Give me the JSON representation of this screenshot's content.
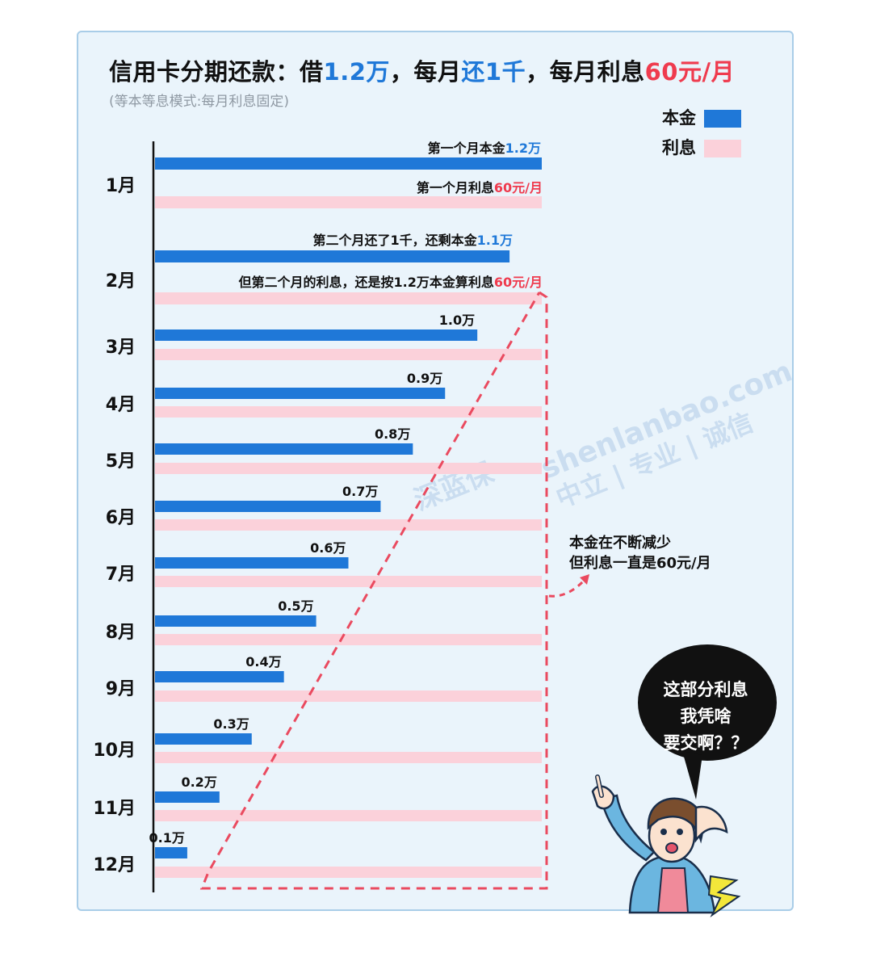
{
  "title": {
    "part1": "信用卡分期还款：借",
    "amount": "1.2万",
    "part2": "，每月",
    "repay_a": "还",
    "repay_b": "1千",
    "part3": "，每月利息",
    "interest": "60元/月"
  },
  "subtitle": "(等本等息模式:每月利息固定)",
  "legend": [
    {
      "label": "本金",
      "color": "#1f78d8"
    },
    {
      "label": "利息",
      "color": "#fbd1da"
    }
  ],
  "annotations": {
    "m1_principal_prefix": "第一个月本金",
    "m1_principal_value": "1.2万",
    "m1_interest_prefix": "第一个月利息",
    "m1_interest_value": "60元/月",
    "m2_principal_prefix": "第二个月还了1千，还剩本金",
    "m2_principal_value": "1.1万",
    "m2_interest_prefix": "但第二个月的利息，还是按1.2万本金算利息",
    "m2_interest_value": "60元/月"
  },
  "note": {
    "line1": "本金在不断减少",
    "line2": "但利息一直是60元/月"
  },
  "bubble": {
    "line1": "这部分利息",
    "line2": "我凭啥",
    "line3": "要交啊？？"
  },
  "watermark": {
    "site": "shenlanbao.com",
    "slogan": "中立 | 专业 | 诚信",
    "brand": "深蓝保"
  },
  "chart_data": {
    "type": "bar",
    "orientation": "horizontal",
    "categories": [
      "1月",
      "2月",
      "3月",
      "4月",
      "5月",
      "6月",
      "7月",
      "8月",
      "9月",
      "10月",
      "11月",
      "12月"
    ],
    "series": [
      {
        "name": "本金",
        "color": "#1f78d8",
        "values": [
          1.2,
          1.1,
          1.0,
          0.9,
          0.8,
          0.7,
          0.6,
          0.5,
          0.4,
          0.3,
          0.2,
          0.1
        ],
        "unit": "万",
        "labels": [
          "",
          "",
          "1.0万",
          "0.9万",
          "0.8万",
          "0.7万",
          "0.6万",
          "0.5万",
          "0.4万",
          "0.3万",
          "0.2万",
          "0.1万"
        ]
      },
      {
        "name": "利息",
        "color": "#fbd1da",
        "values": [
          1.2,
          1.2,
          1.2,
          1.2,
          1.2,
          1.2,
          1.2,
          1.2,
          1.2,
          1.2,
          1.2,
          1.2
        ],
        "unit": "万 (按本金计息基数)"
      }
    ],
    "xlim": [
      0,
      1.2
    ]
  }
}
